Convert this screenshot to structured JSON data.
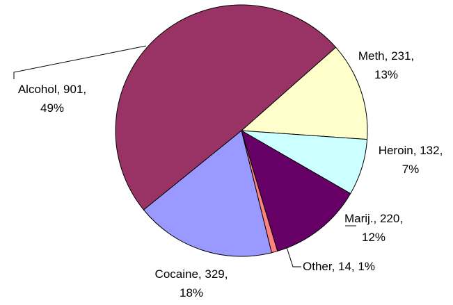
{
  "chart_data": {
    "type": "pie",
    "title": "",
    "start_angle_deg": 48.5,
    "direction": "clockwise",
    "slices": [
      {
        "label": "Meth",
        "value": 231,
        "percent": "13%",
        "color": "#FFFFCC"
      },
      {
        "label": "Heroin",
        "value": 132,
        "percent": "7%",
        "color": "#CCFFFF"
      },
      {
        "label": "Marij.",
        "value": 220,
        "percent": "12%",
        "color": "#660066"
      },
      {
        "label": "Other",
        "value": 14,
        "percent": "1%",
        "color": "#FF8080"
      },
      {
        "label": "Cocaine",
        "value": 329,
        "percent": "18%",
        "color": "#9999FF"
      },
      {
        "label": "Alcohol",
        "value": 901,
        "percent": "49%",
        "color": "#993366"
      }
    ],
    "label_text": [
      {
        "line1": "Meth, 231,",
        "line2": "13%"
      },
      {
        "line1": "Heroin, 132,",
        "line2": "7%"
      },
      {
        "line1": "Marij., 220,",
        "line2": "12%"
      },
      {
        "line1": "Other, 14, 1%",
        "line2": ""
      },
      {
        "line1": "Cocaine, 329,",
        "line2": "18%"
      },
      {
        "line1": "Alcohol, 901,",
        "line2": "49%"
      }
    ],
    "slice_border_color": "#000000",
    "leader_line_color": "#000000"
  }
}
